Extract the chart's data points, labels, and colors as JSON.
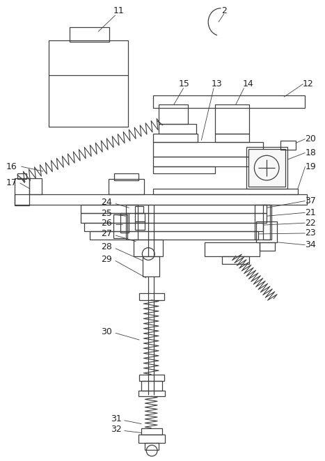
{
  "bg_color": "#ffffff",
  "line_color": "#404040",
  "label_color": "#222222",
  "fig_width": 4.67,
  "fig_height": 6.62,
  "dpi": 100
}
